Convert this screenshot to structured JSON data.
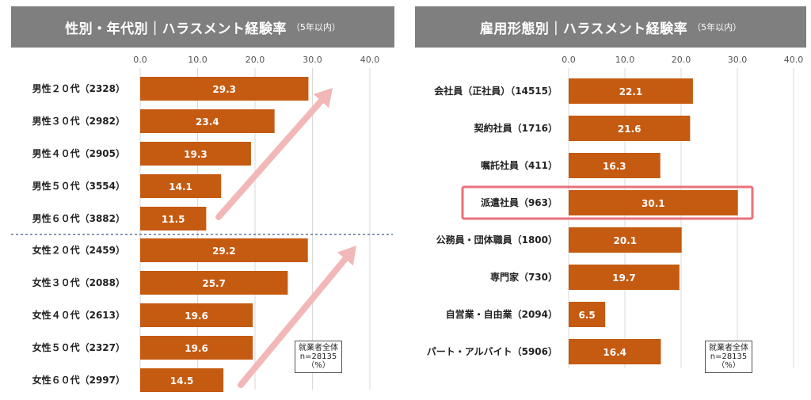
{
  "colors": {
    "bar": "#c55a11",
    "header": "#7f7f7f",
    "arrow": "#f2b8b8",
    "highlight": "#e8727a",
    "divider": "#3c5a8a"
  },
  "chart_data": [
    {
      "type": "bar",
      "title": "性別・年代別｜ハラスメント経験率",
      "subtitle": "（5年以内）",
      "orientation": "horizontal",
      "xlim": [
        0,
        40
      ],
      "ticks": [
        "0.0",
        "10.0",
        "20.0",
        "30.0",
        "40.0"
      ],
      "categories": [
        "男性２０代（2328）",
        "男性３０代（2982）",
        "男性４０代（2905）",
        "男性５０代（3554）",
        "男性６０代（3882）",
        "女性２０代（2459）",
        "女性３０代（2088）",
        "女性４０代（2613）",
        "女性５０代（2327）",
        "女性６０代（2997）"
      ],
      "values": [
        29.3,
        23.4,
        19.3,
        14.1,
        11.5,
        29.2,
        25.7,
        19.6,
        19.6,
        14.5
      ],
      "note": [
        "就業者全体",
        "n=28135",
        "（%）"
      ]
    },
    {
      "type": "bar",
      "title": "雇用形態別｜ハラスメント経験率",
      "subtitle": "（5年以内）",
      "orientation": "horizontal",
      "xlim": [
        0,
        40
      ],
      "ticks": [
        "0.0",
        "10.0",
        "20.0",
        "30.0",
        "40.0"
      ],
      "categories": [
        "会社員（正社員）（14515）",
        "契約社員（1716）",
        "嘱託社員（411）",
        "派遣社員（963）",
        "公務員・団体職員（1800）",
        "専門家（730）",
        "自営業・自由業（2094）",
        "パート・アルバイト（5906）"
      ],
      "values": [
        22.1,
        21.6,
        16.3,
        30.1,
        20.1,
        19.7,
        6.5,
        16.4
      ],
      "highlight_index": 3,
      "note": [
        "就業者全体",
        "n=28135",
        "（%）"
      ]
    }
  ]
}
